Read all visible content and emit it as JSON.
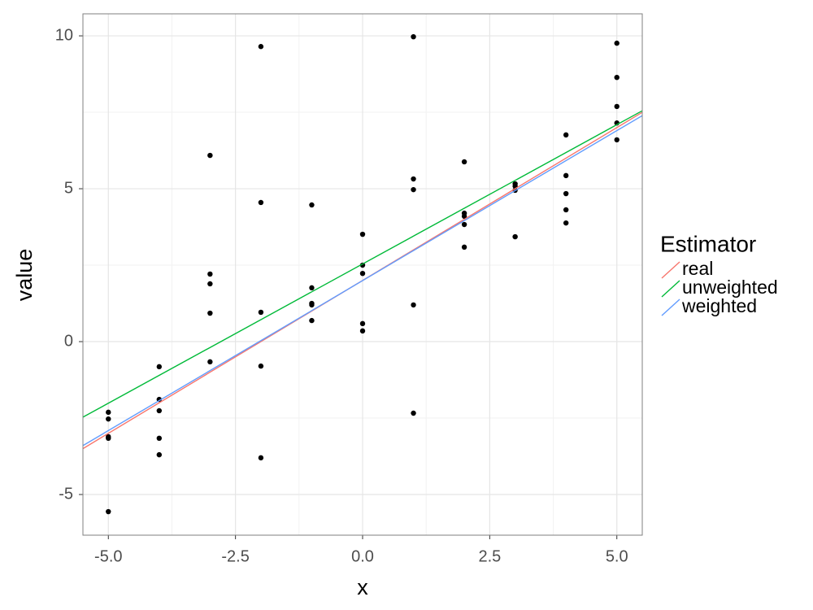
{
  "chart_data": {
    "type": "scatter",
    "x_label": "x",
    "y_label": "value",
    "x": [
      -5,
      -5,
      -5,
      -5,
      -5,
      -4,
      -4,
      -4,
      -4,
      -4,
      -3,
      -3,
      -3,
      -3,
      -3,
      -2,
      -2,
      -2,
      -2,
      -2,
      -1,
      -1,
      -1,
      -1,
      -1,
      0,
      0,
      0,
      0,
      0,
      1,
      1,
      1,
      1,
      1,
      2,
      2,
      2,
      2,
      2,
      3,
      3,
      3,
      3,
      4,
      4,
      4,
      4,
      4,
      5,
      5,
      5,
      5,
      5
    ],
    "values": [
      -2.31,
      -2.53,
      -3.11,
      -3.16,
      -5.56,
      -0.82,
      -1.89,
      -2.26,
      -3.16,
      -3.7,
      6.09,
      2.21,
      1.89,
      0.93,
      -0.66,
      9.65,
      4.55,
      0.96,
      -0.8,
      -3.8,
      4.47,
      1.76,
      1.25,
      1.2,
      0.69,
      3.51,
      2.5,
      2.23,
      0.59,
      0.35,
      9.97,
      5.32,
      4.97,
      1.2,
      -2.34,
      5.88,
      4.2,
      4.1,
      3.83,
      3.09,
      5.16,
      5.08,
      4.95,
      3.43,
      6.76,
      5.43,
      4.84,
      4.31,
      3.88,
      9.76,
      8.64,
      7.69,
      7.15,
      6.6
    ],
    "point_color": "#000000",
    "series": [
      {
        "name": "real",
        "color": "#F8766D",
        "x": [
          -5.5,
          5.5
        ],
        "values": [
          -3.5,
          7.5
        ]
      },
      {
        "name": "unweighted",
        "color": "#00BA38",
        "x": [
          -5.5,
          5.5
        ],
        "values": [
          -2.47,
          7.55
        ]
      },
      {
        "name": "weighted",
        "color": "#619CFF",
        "x": [
          -5.5,
          5.5
        ],
        "values": [
          -3.4,
          7.39
        ]
      }
    ],
    "legend_title": "Estimator",
    "legend_position": "right",
    "xlim": [
      -5.5,
      5.5
    ],
    "ylim": [
      -6.33,
      10.72
    ],
    "xticks": [
      {
        "value": -5,
        "label": "-5.0"
      },
      -2.5,
      {
        "value": 0,
        "label": "0.0"
      },
      2.5,
      {
        "value": 5,
        "label": "5.0"
      }
    ],
    "yticks": [
      -5,
      0,
      5,
      10
    ],
    "grid": true
  }
}
